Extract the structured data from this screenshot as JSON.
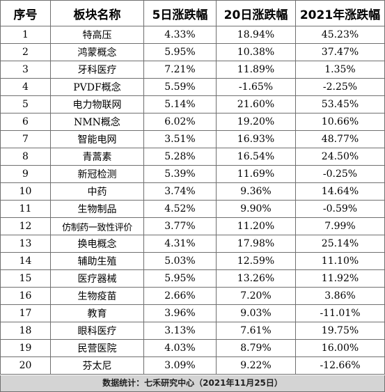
{
  "table": {
    "headers": [
      "序号",
      "板块名称",
      "5日涨跌幅",
      "20日涨跌幅",
      "2021年涨跌幅"
    ],
    "rows": [
      [
        "1",
        "特高压",
        "4.33%",
        "18.94%",
        "45.23%"
      ],
      [
        "2",
        "鸿蒙概念",
        "5.95%",
        "10.38%",
        "37.47%"
      ],
      [
        "3",
        "牙科医疗",
        "7.21%",
        "11.89%",
        "1.35%"
      ],
      [
        "4",
        "PVDF概念",
        "5.59%",
        "-1.65%",
        "-2.25%"
      ],
      [
        "5",
        "电力物联网",
        "5.14%",
        "21.60%",
        "53.45%"
      ],
      [
        "6",
        "NMN概念",
        "6.02%",
        "19.20%",
        "10.66%"
      ],
      [
        "7",
        "智能电网",
        "3.51%",
        "16.93%",
        "48.77%"
      ],
      [
        "8",
        "青蒿素",
        "5.28%",
        "16.54%",
        "24.50%"
      ],
      [
        "9",
        "新冠检测",
        "5.39%",
        "11.69%",
        "-0.25%"
      ],
      [
        "10",
        "中药",
        "3.74%",
        "9.36%",
        "14.64%"
      ],
      [
        "11",
        "生物制品",
        "4.52%",
        "9.90%",
        "-0.59%"
      ],
      [
        "12",
        "仿制药一致性评价",
        "3.77%",
        "11.20%",
        "7.99%"
      ],
      [
        "13",
        "换电概念",
        "4.31%",
        "17.98%",
        "25.14%"
      ],
      [
        "14",
        "辅助生殖",
        "5.03%",
        "12.59%",
        "11.10%"
      ],
      [
        "15",
        "医疗器械",
        "5.95%",
        "13.26%",
        "11.92%"
      ],
      [
        "16",
        "生物疫苗",
        "2.66%",
        "7.20%",
        "3.86%"
      ],
      [
        "17",
        "教育",
        "3.96%",
        "9.03%",
        "-11.01%"
      ],
      [
        "18",
        "眼科医疗",
        "3.13%",
        "7.61%",
        "19.75%"
      ],
      [
        "19",
        "民营医院",
        "4.03%",
        "8.79%",
        "16.00%"
      ],
      [
        "20",
        "芬太尼",
        "3.09%",
        "9.22%",
        "-12.66%"
      ]
    ]
  },
  "footer": "数据统计：七禾研究中心（2021年11月25日）"
}
